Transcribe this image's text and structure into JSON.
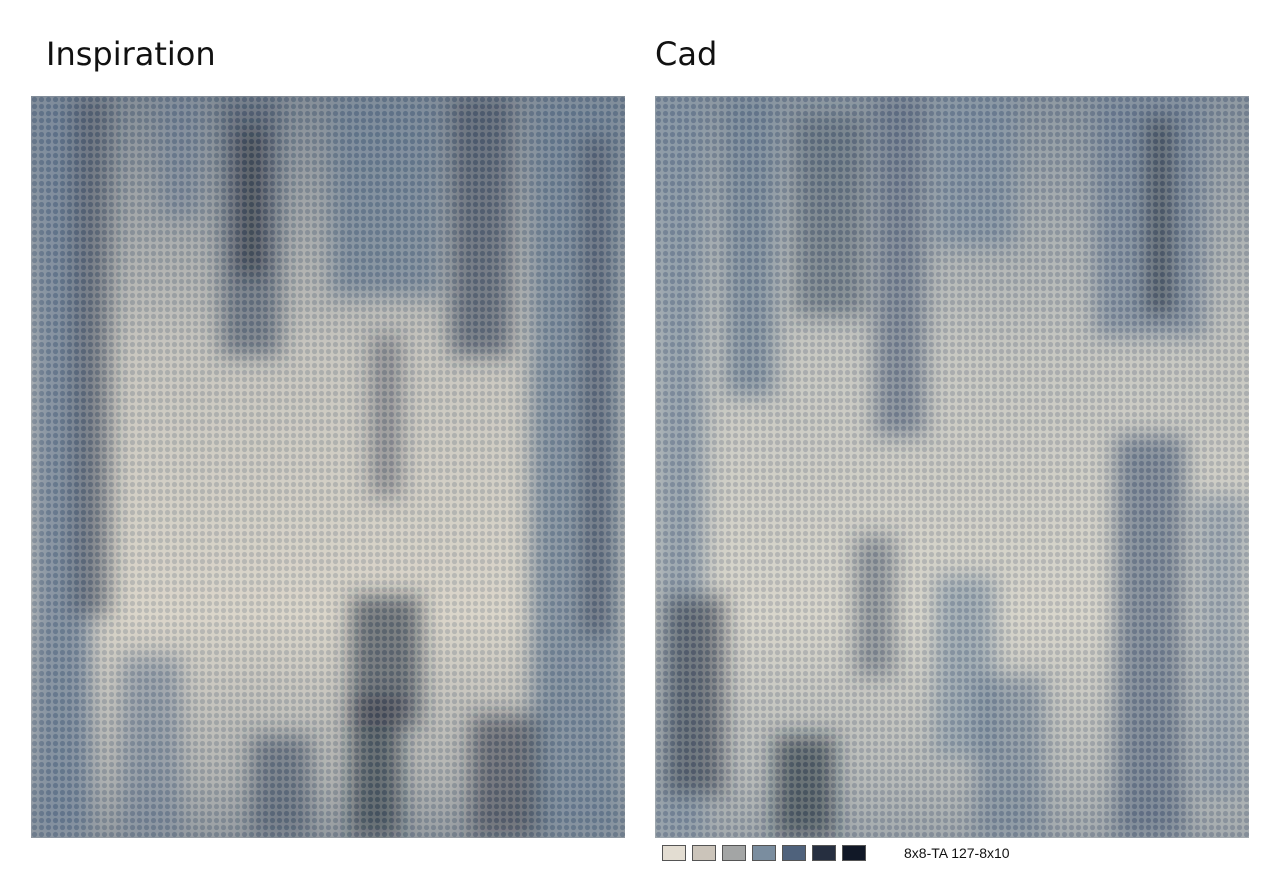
{
  "headings": {
    "left": "Inspiration",
    "right": "Cad"
  },
  "artwork": {
    "left": {
      "description_icon": "abstract-rug-image"
    },
    "right": {
      "description_icon": "abstract-rug-image"
    }
  },
  "palette": {
    "colors": [
      "#e3ddd2",
      "#cbc4ba",
      "#a3a5a5",
      "#7a8d9f",
      "#4f627c",
      "#262f40",
      "#111827"
    ]
  },
  "code_label": "8x8-TA 127-8x10"
}
